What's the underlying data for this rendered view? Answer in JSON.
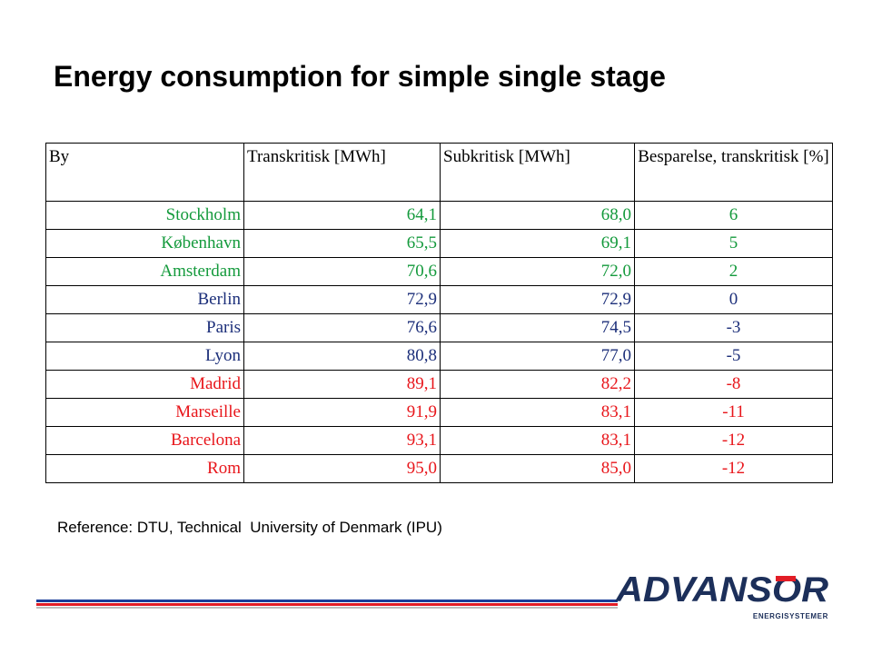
{
  "title": "Energy consumption for simple single stage",
  "table": {
    "headers": [
      "By",
      "Transkritisk [MWh]",
      "Subkritisk [MWh]",
      "Besparelse, transkritisk [%]"
    ],
    "rows": [
      {
        "city": "Stockholm",
        "trans": "64,1",
        "sub": "68,0",
        "saving": "6",
        "color": "#149a3c"
      },
      {
        "city": "København",
        "trans": "65,5",
        "sub": "69,1",
        "saving": "5",
        "color": "#149a3c"
      },
      {
        "city": "Amsterdam",
        "trans": "70,6",
        "sub": "72,0",
        "saving": "2",
        "color": "#149a3c"
      },
      {
        "city": "Berlin",
        "trans": "72,9",
        "sub": "72,9",
        "saving": "0",
        "color": "#1c2f7a"
      },
      {
        "city": "Paris",
        "trans": "76,6",
        "sub": "74,5",
        "saving": "-3",
        "color": "#1c2f7a"
      },
      {
        "city": "Lyon",
        "trans": "80,8",
        "sub": "77,0",
        "saving": "-5",
        "color": "#1c2f7a"
      },
      {
        "city": "Madrid",
        "trans": "89,1",
        "sub": "82,2",
        "saving": "-8",
        "color": "#e8161b"
      },
      {
        "city": "Marseille",
        "trans": "91,9",
        "sub": "83,1",
        "saving": "-11",
        "color": "#e8161b"
      },
      {
        "city": "Barcelona",
        "trans": "93,1",
        "sub": "83,1",
        "saving": "-12",
        "color": "#e8161b"
      },
      {
        "city": "Rom",
        "trans": "95,0",
        "sub": "85,0",
        "saving": "-12",
        "color": "#e8161b"
      }
    ]
  },
  "reference": "Reference: DTU, Technical  University of Denmark (IPU)",
  "logo": {
    "text": "ADVANSOR",
    "subtext": "ENERGISYSTEMER",
    "colors": {
      "dark": "#1c2f5a",
      "red": "#e21d26"
    }
  }
}
